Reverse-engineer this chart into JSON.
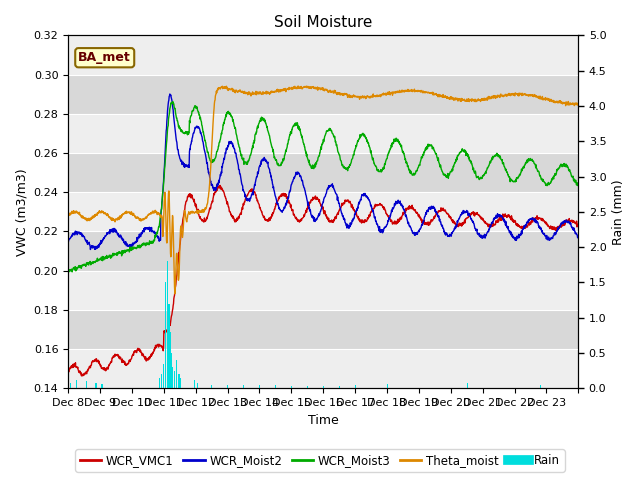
{
  "title": "Soil Moisture",
  "xlabel": "Time",
  "ylabel_left": "VWC (m3/m3)",
  "ylabel_right": "Rain (mm)",
  "ylim_left": [
    0.14,
    0.32
  ],
  "ylim_right": [
    0.0,
    5.0
  ],
  "yticks_left": [
    0.14,
    0.16,
    0.18,
    0.2,
    0.22,
    0.24,
    0.26,
    0.28,
    0.3,
    0.32
  ],
  "yticks_right": [
    0.0,
    0.5,
    1.0,
    1.5,
    2.0,
    2.5,
    3.0,
    3.5,
    4.0,
    4.5,
    5.0
  ],
  "xtick_labels": [
    "Dec 8",
    "Dec 9",
    "Dec 10",
    "Dec 11",
    "Dec 12",
    "Dec 13",
    "Dec 14",
    "Dec 15",
    "Dec 16",
    "Dec 17",
    "Dec 18",
    "Dec 19",
    "Dec 20",
    "Dec 21",
    "Dec 22",
    "Dec 23"
  ],
  "colors": {
    "WCR_VMC1": "#cc0000",
    "WCR_Moist2": "#0000cc",
    "WCR_Moist3": "#00aa00",
    "Theta_moist": "#dd8800",
    "Rain": "#00dddd"
  },
  "bg_light": "#eeeeee",
  "bg_dark": "#d8d8d8",
  "title_fontsize": 11,
  "axis_fontsize": 9,
  "tick_fontsize": 8
}
